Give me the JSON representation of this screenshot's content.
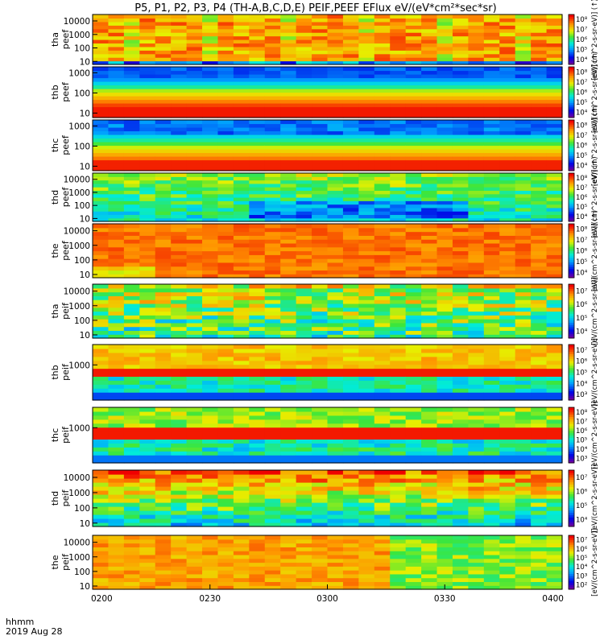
{
  "chart_data": {
    "type": "heatmap",
    "title": "P5, P1, P2, P3, P4 (TH-A,B,C,D,E) PEIF,PEEF EFlux eV/(eV*cm²*sec*sr)",
    "x_axis": {
      "ticks": [
        "0200",
        "0230",
        "0300",
        "0330",
        "0400"
      ],
      "range": [
        "0200",
        "0400"
      ],
      "label_line1": "hhmm",
      "label_line2": "2019 Aug 28"
    },
    "colormap": "rainbow",
    "panels": [
      {
        "name": "tha_peef",
        "probe": "tha",
        "product": "peef",
        "ylabel_line1": "tha",
        "ylabel_line2": "peef",
        "yscale": "log",
        "yticks": [
          "10",
          "100",
          "1000",
          "10000"
        ],
        "cbar_ticks": [
          "10⁴",
          "10⁵",
          "10⁶",
          "10⁷",
          "10⁸"
        ],
        "cbar_label": "[eV/(cm^2-s-sr-eV)] (↑)"
      },
      {
        "name": "thb_peef",
        "probe": "thb",
        "product": "peef",
        "ylabel_line1": "thb",
        "ylabel_line2": "peef",
        "yscale": "log",
        "yticks": [
          "10",
          "100",
          "1000"
        ],
        "cbar_ticks": [
          "10⁴",
          "10⁵",
          "10⁶",
          "10⁷",
          "10⁸"
        ],
        "cbar_label": "[eV/(cm^2-s-sr-eV)] (↑)"
      },
      {
        "name": "thc_peef",
        "probe": "thc",
        "product": "peef",
        "ylabel_line1": "thc",
        "ylabel_line2": "peef",
        "yscale": "log",
        "yticks": [
          "10",
          "100",
          "1000"
        ],
        "cbar_ticks": [
          "10⁴",
          "10⁵",
          "10⁶",
          "10⁷",
          "10⁸"
        ],
        "cbar_label": "[eV/(cm^2-s-sr-eV)] (↑)"
      },
      {
        "name": "thd_peef",
        "probe": "thd",
        "product": "peef",
        "ylabel_line1": "thd",
        "ylabel_line2": "peef",
        "yscale": "log",
        "yticks": [
          "10",
          "100",
          "1000",
          "10000"
        ],
        "cbar_ticks": [
          "10⁴",
          "10⁵",
          "10⁶",
          "10⁷",
          "10⁸"
        ],
        "cbar_label": "[eV/(cm^2-s-sr-eV)] (↑)"
      },
      {
        "name": "the_peef",
        "probe": "the",
        "product": "peef",
        "ylabel_line1": "the",
        "ylabel_line2": "peef",
        "yscale": "log",
        "yticks": [
          "10",
          "100",
          "1000",
          "10000"
        ],
        "cbar_ticks": [
          "10⁴",
          "10⁵",
          "10⁶",
          "10⁷",
          "10⁸"
        ],
        "cbar_label": "[eV/(cm^2-s-sr-eV)] (↑)"
      },
      {
        "name": "tha_peif",
        "probe": "tha",
        "product": "peif",
        "ylabel_line1": "tha",
        "ylabel_line2": "peif",
        "yscale": "log",
        "yticks": [
          "10",
          "100",
          "1000",
          "10000"
        ],
        "cbar_ticks": [
          "10⁴",
          "10⁵",
          "10⁶",
          "10⁷"
        ],
        "cbar_label": "[eV/(cm^2-s-sr-eV)]"
      },
      {
        "name": "thb_peif",
        "probe": "thb",
        "product": "peif",
        "ylabel_line1": "thb",
        "ylabel_line2": "peif",
        "yscale": "log",
        "yticks": [
          "1000"
        ],
        "cbar_ticks": [
          "10³",
          "10⁴",
          "10⁵",
          "10⁶",
          "10⁷"
        ],
        "cbar_label": "[eV/(cm^2-s-sr-eV)]"
      },
      {
        "name": "thc_peif",
        "probe": "thc",
        "product": "peif",
        "ylabel_line1": "thc",
        "ylabel_line2": "peif",
        "yscale": "log",
        "yticks": [
          "1000"
        ],
        "cbar_ticks": [
          "10³",
          "10⁴",
          "10⁵",
          "10⁶",
          "10⁷",
          "10⁸"
        ],
        "cbar_label": "[eV/(cm^2-s-sr-eV)]"
      },
      {
        "name": "thd_peif",
        "probe": "thd",
        "product": "peif",
        "ylabel_line1": "thd",
        "ylabel_line2": "peif",
        "yscale": "log",
        "yticks": [
          "10",
          "100",
          "1000",
          "10000"
        ],
        "cbar_ticks": [
          "10⁴",
          "10⁵",
          "10⁶",
          "10⁷"
        ],
        "cbar_label": "[eV/(cm^2-s-sr-eV)]"
      },
      {
        "name": "the_peif",
        "probe": "the",
        "product": "peif",
        "ylabel_line1": "the",
        "ylabel_line2": "peif",
        "yscale": "log",
        "yticks": [
          "10",
          "100",
          "1000",
          "10000"
        ],
        "cbar_ticks": [
          "10²",
          "10³",
          "10⁴",
          "10⁵",
          "10⁶",
          "10⁷"
        ],
        "cbar_label": "[eV/(cm^2-s-sr-eV)]"
      }
    ]
  }
}
